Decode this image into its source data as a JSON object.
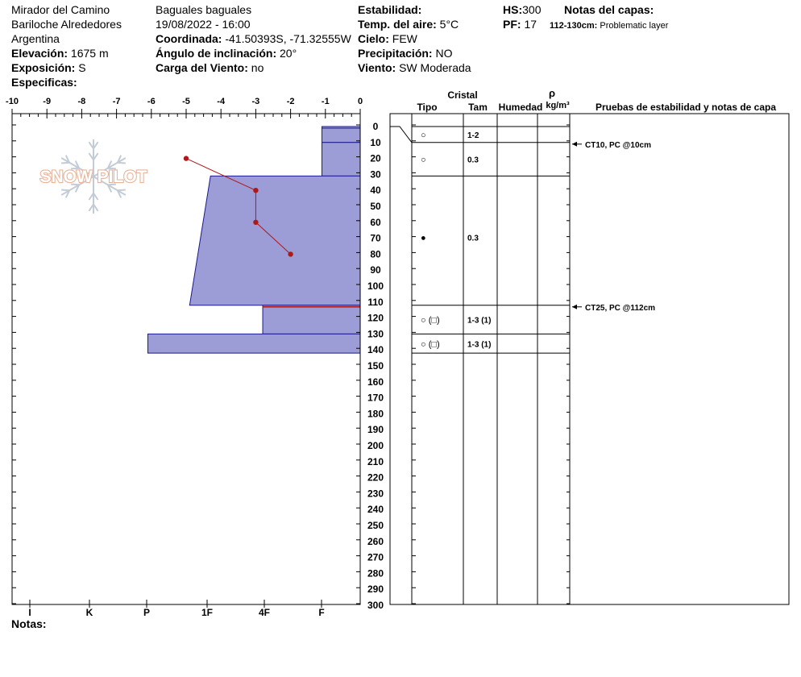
{
  "header": {
    "location_name": "Mirador del Camino",
    "region": "Bariloche Alrededores",
    "country": "Argentina",
    "elevation_label": "Elevación:",
    "elevation_value": "1675 m",
    "aspect_label": "Exposición:",
    "aspect_value": "S",
    "specifics_label": "Especificas:",
    "observer": "Baguales baguales",
    "datetime": "19/08/2022 - 16:00",
    "coord_label": "Coordinada:",
    "coord_value": "-41.50393S, -71.32555W",
    "slope_label": "Ángulo de inclinación:",
    "slope_value": "20°",
    "wind_load_label": "Carga del Viento:",
    "wind_load_value": "no",
    "stability_label": "Estabilidad:",
    "air_temp_label": "Temp. del aire:",
    "air_temp_value": "5°C",
    "sky_label": "Cielo:",
    "sky_value": "FEW",
    "precip_label": "Precipitación:",
    "precip_value": "NO",
    "wind_label": "Viento:",
    "wind_value": "SW Moderada",
    "hs_label": "HS:",
    "hs_value": "300",
    "pf_label": "PF:",
    "pf_value": "17",
    "layer_notes_label": "Notas del capas:",
    "layer_note_depth": "112-130cm:",
    "layer_note_text": "Problematic layer"
  },
  "logo": {
    "text": "SNOW PILOT"
  },
  "footer": {
    "notes_label": "Notas:"
  },
  "table_headers": {
    "cristal": "Cristal",
    "tipo": "Tipo",
    "tam": "Tam",
    "humedad": "Humedad",
    "rho": "ρ",
    "density_unit": "kg/m³",
    "tests": "Pruebas de estabilidad y notas de capa"
  },
  "colors": {
    "layer_fill": "#9c9cd6",
    "layer_stroke": "#1a1a8c",
    "temp_line": "#b01818"
  },
  "chart_data": {
    "type": "snow-profile",
    "x_ticks": [
      "-10",
      "-9",
      "-8",
      "-7",
      "-6",
      "-5",
      "-4",
      "-3",
      "-2",
      "-1",
      "0"
    ],
    "hardness_ticks": [
      "I",
      "K",
      "P",
      "1F",
      "4F",
      "F"
    ],
    "depth_ticks": [
      "0",
      "10",
      "20",
      "30",
      "40",
      "50",
      "60",
      "70",
      "80",
      "90",
      "100",
      "110",
      "120",
      "130",
      "140",
      "150",
      "160",
      "170",
      "180",
      "190",
      "200",
      "210",
      "220",
      "230",
      "240",
      "250",
      "260",
      "270",
      "280",
      "290",
      "300"
    ],
    "depth_range": [
      0,
      300
    ],
    "temperature_range": [
      -10,
      0
    ],
    "layers": [
      {
        "top": 0,
        "bottom": 10,
        "hardness_top": -1.1,
        "hardness_bottom": -1.1,
        "grain": "○",
        "size": "1-2"
      },
      {
        "top": 10,
        "bottom": 31,
        "hardness_top": -1.1,
        "hardness_bottom": -1.1,
        "grain": "○",
        "size": "0.3"
      },
      {
        "top": 31,
        "bottom": 112,
        "hardness_top": -4.3,
        "hardness_bottom": -4.9,
        "grain": "●",
        "size": "0.3"
      },
      {
        "top": 112,
        "bottom": 130,
        "hardness_top": -2.8,
        "hardness_bottom": -2.8,
        "grain": "○ (□)",
        "size": "1-3 (1)"
      },
      {
        "top": 130,
        "bottom": 142,
        "hardness_top": -6.1,
        "hardness_bottom": -6.1,
        "grain": "○ (□)",
        "size": "1-3 (1)"
      }
    ],
    "temperature_profile": [
      {
        "depth": 20,
        "temp": -5
      },
      {
        "depth": 40,
        "temp": -3
      },
      {
        "depth": 60,
        "temp": -3
      },
      {
        "depth": 80,
        "temp": -2
      }
    ],
    "stability_tests": [
      {
        "depth": 10,
        "label": "CT10, PC @10cm"
      },
      {
        "depth": 112,
        "label": "CT25, PC @112cm"
      }
    ]
  }
}
